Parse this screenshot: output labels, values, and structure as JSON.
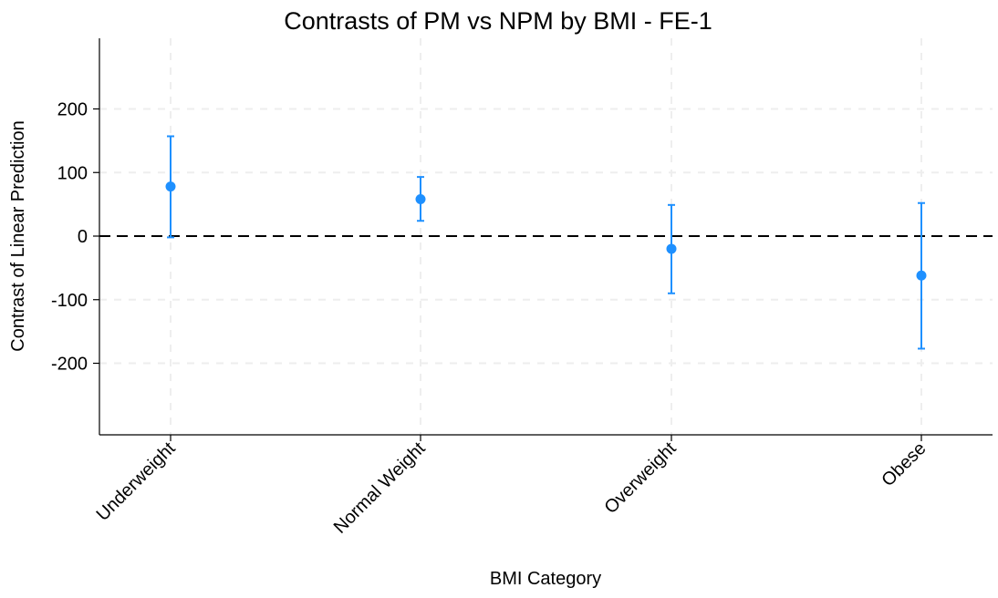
{
  "chart_data": {
    "type": "scatter",
    "title": "Contrasts of PM vs NPM by BMI - FE-1",
    "xlabel": "BMI Category",
    "ylabel": "Contrast of Linear Prediction",
    "categories": [
      "Underweight",
      "Normal Weight",
      "Overweight",
      "Obese"
    ],
    "series": [
      {
        "estimates": [
          78,
          58,
          -20,
          -62
        ],
        "ci_lower": [
          -2,
          24,
          -90,
          -177
        ],
        "ci_upper": [
          157,
          93,
          49,
          52
        ]
      }
    ],
    "ylim": [
      -310,
      310
    ],
    "yticks": [
      -200,
      -100,
      0,
      100,
      200
    ],
    "reference_line": {
      "y": 0,
      "style": "dashed",
      "color": "#000000"
    },
    "grid": true,
    "grid_style": "dashed",
    "colors": {
      "marker": "#1E90FF",
      "grid": "#eeeeee",
      "axis": "#000000"
    }
  }
}
